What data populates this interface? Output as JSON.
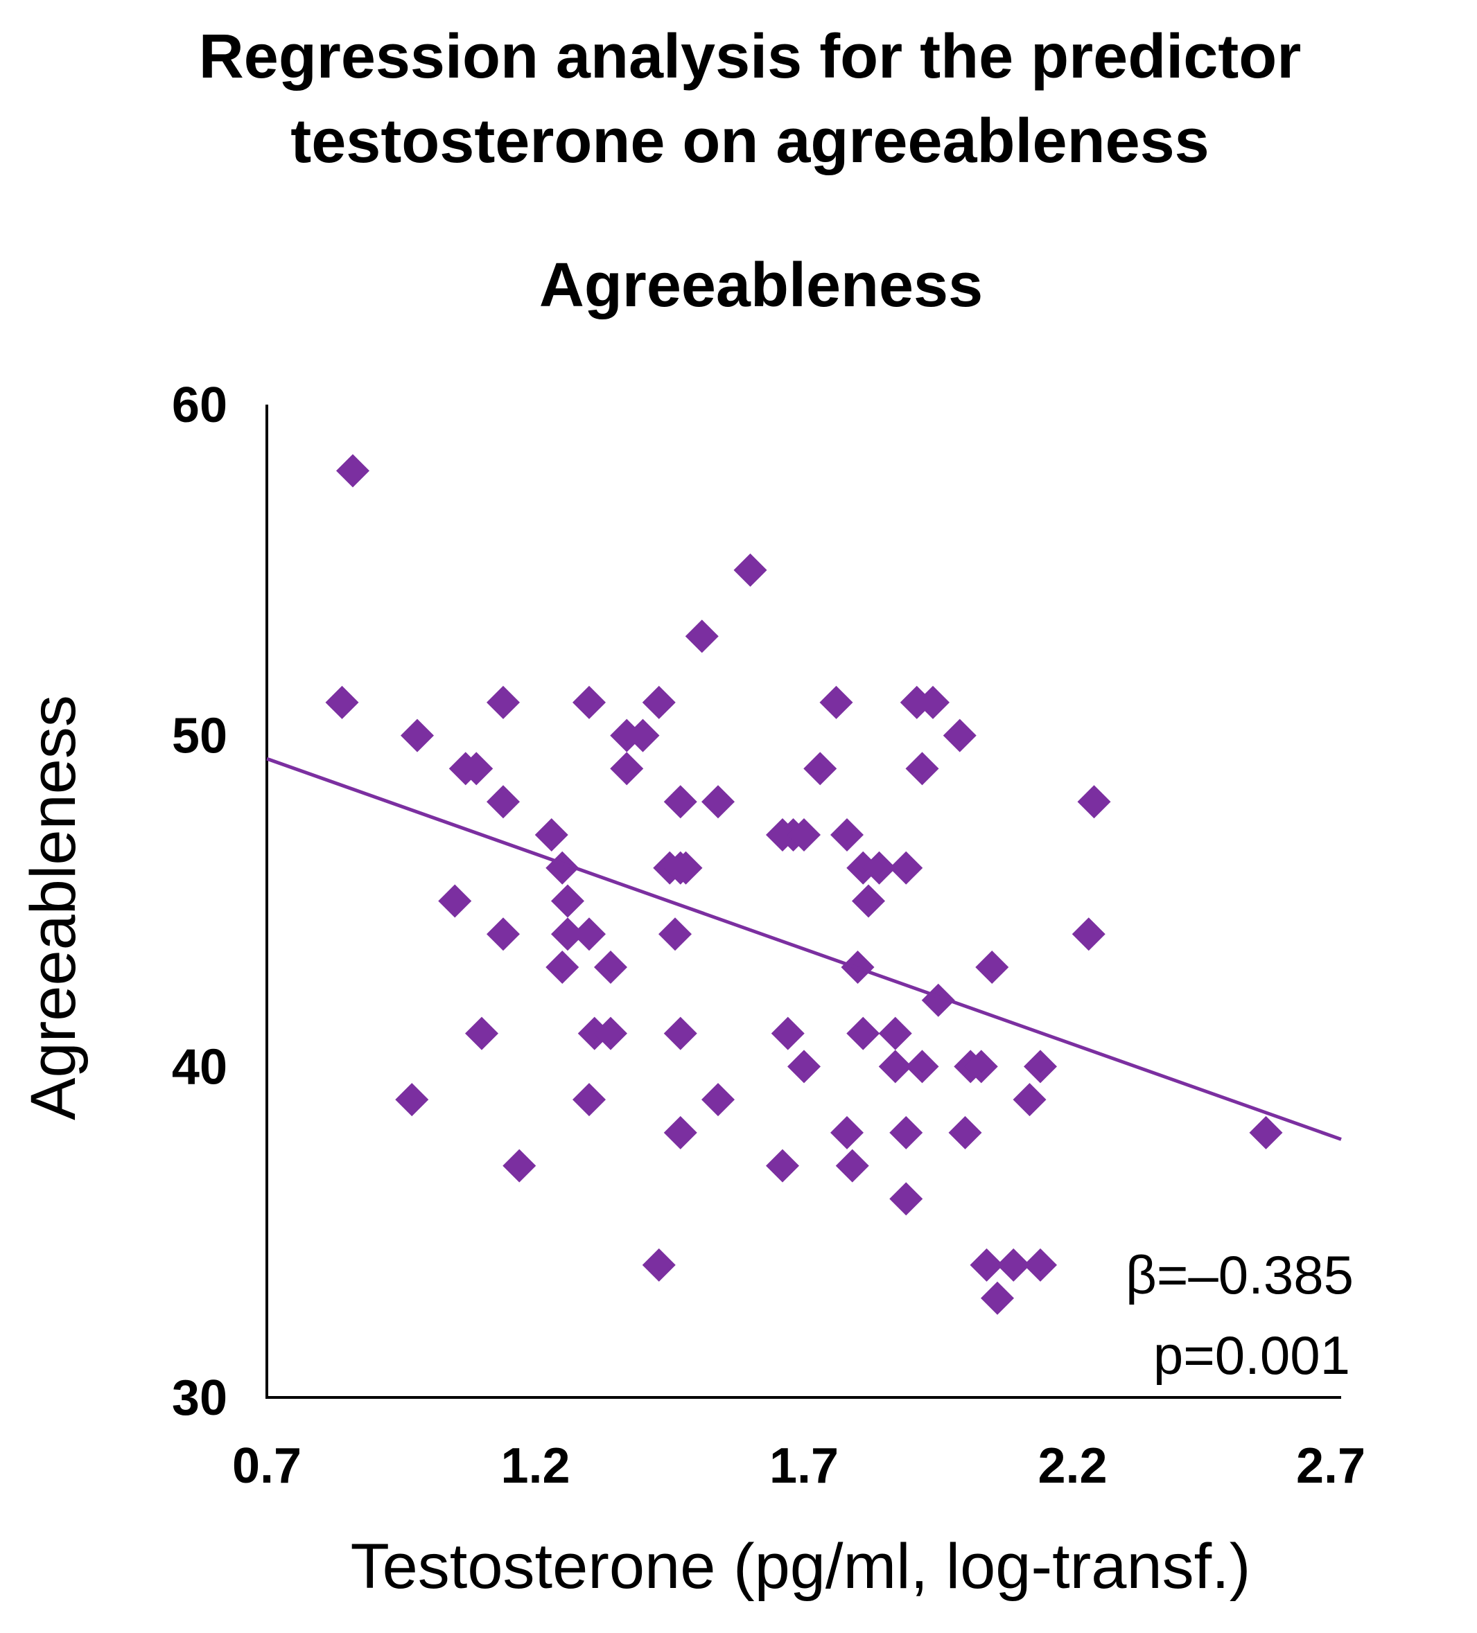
{
  "chart_data": {
    "type": "scatter",
    "title": "Regression analysis for the predictor testosterone on agreeableness",
    "title_lines": [
      "Regression analysis for the predictor",
      "testosterone on agreeableness"
    ],
    "subtitle": "Agreeableness",
    "xlabel": "Testosterone (pg/ml, log-transf.)",
    "ylabel": "Agreeableness",
    "xlim": [
      0.7,
      2.7
    ],
    "ylim": [
      30,
      60
    ],
    "x_ticks": [
      0.7,
      1.2,
      1.7,
      2.2,
      2.7
    ],
    "x_tick_labels": [
      "0.7",
      "1.2",
      "1.7",
      "2.2",
      "2.7"
    ],
    "y_ticks": [
      30,
      40,
      50,
      60
    ],
    "y_tick_labels": [
      "30",
      "40",
      "50",
      "60"
    ],
    "grid": false,
    "legend": "none",
    "marker": "diamond",
    "color": "#7B2FA0",
    "series": [
      {
        "points": [
          [
            0.86,
            58
          ],
          [
            0.84,
            51
          ],
          [
            0.98,
            50
          ],
          [
            0.97,
            39
          ],
          [
            1.05,
            45
          ],
          [
            1.07,
            49
          ],
          [
            1.09,
            49
          ],
          [
            1.1,
            41
          ],
          [
            1.14,
            51
          ],
          [
            1.14,
            48
          ],
          [
            1.14,
            44
          ],
          [
            1.17,
            37
          ],
          [
            1.23,
            47
          ],
          [
            1.25,
            46
          ],
          [
            1.25,
            43
          ],
          [
            1.26,
            45
          ],
          [
            1.26,
            44
          ],
          [
            1.3,
            51
          ],
          [
            1.3,
            44
          ],
          [
            1.3,
            39
          ],
          [
            1.31,
            41
          ],
          [
            1.34,
            43
          ],
          [
            1.34,
            41
          ],
          [
            1.37,
            50
          ],
          [
            1.37,
            49
          ],
          [
            1.4,
            50
          ],
          [
            1.43,
            51
          ],
          [
            1.43,
            34
          ],
          [
            1.45,
            46
          ],
          [
            1.46,
            44
          ],
          [
            1.47,
            48
          ],
          [
            1.47,
            46
          ],
          [
            1.48,
            46
          ],
          [
            1.47,
            41
          ],
          [
            1.47,
            38
          ],
          [
            1.51,
            53
          ],
          [
            1.54,
            48
          ],
          [
            1.54,
            39
          ],
          [
            1.6,
            55
          ],
          [
            1.66,
            47
          ],
          [
            1.67,
            41
          ],
          [
            1.66,
            37
          ],
          [
            1.68,
            47
          ],
          [
            1.7,
            47
          ],
          [
            1.7,
            40
          ],
          [
            1.73,
            49
          ],
          [
            1.76,
            51
          ],
          [
            1.78,
            47
          ],
          [
            1.78,
            38
          ],
          [
            1.79,
            37
          ],
          [
            1.8,
            43
          ],
          [
            1.81,
            46
          ],
          [
            1.82,
            45
          ],
          [
            1.81,
            41
          ],
          [
            1.84,
            46
          ],
          [
            1.87,
            41
          ],
          [
            1.87,
            40
          ],
          [
            1.89,
            46
          ],
          [
            1.89,
            38
          ],
          [
            1.89,
            36
          ],
          [
            1.91,
            51
          ],
          [
            1.92,
            49
          ],
          [
            1.92,
            40
          ],
          [
            1.94,
            51
          ],
          [
            1.95,
            42
          ],
          [
            1.99,
            50
          ],
          [
            2.0,
            38
          ],
          [
            2.01,
            40
          ],
          [
            2.03,
            40
          ],
          [
            2.04,
            34
          ],
          [
            2.05,
            43
          ],
          [
            2.06,
            33
          ],
          [
            2.09,
            34
          ],
          [
            2.12,
            39
          ],
          [
            2.14,
            40
          ],
          [
            2.14,
            34
          ],
          [
            2.23,
            44
          ],
          [
            2.24,
            48
          ],
          [
            2.56,
            38
          ]
        ]
      }
    ],
    "regression_line": {
      "x": [
        0.7,
        2.7
      ],
      "y": [
        49.3,
        37.8
      ]
    },
    "annotations": [
      "β=–0.385",
      "p=0.001"
    ]
  }
}
